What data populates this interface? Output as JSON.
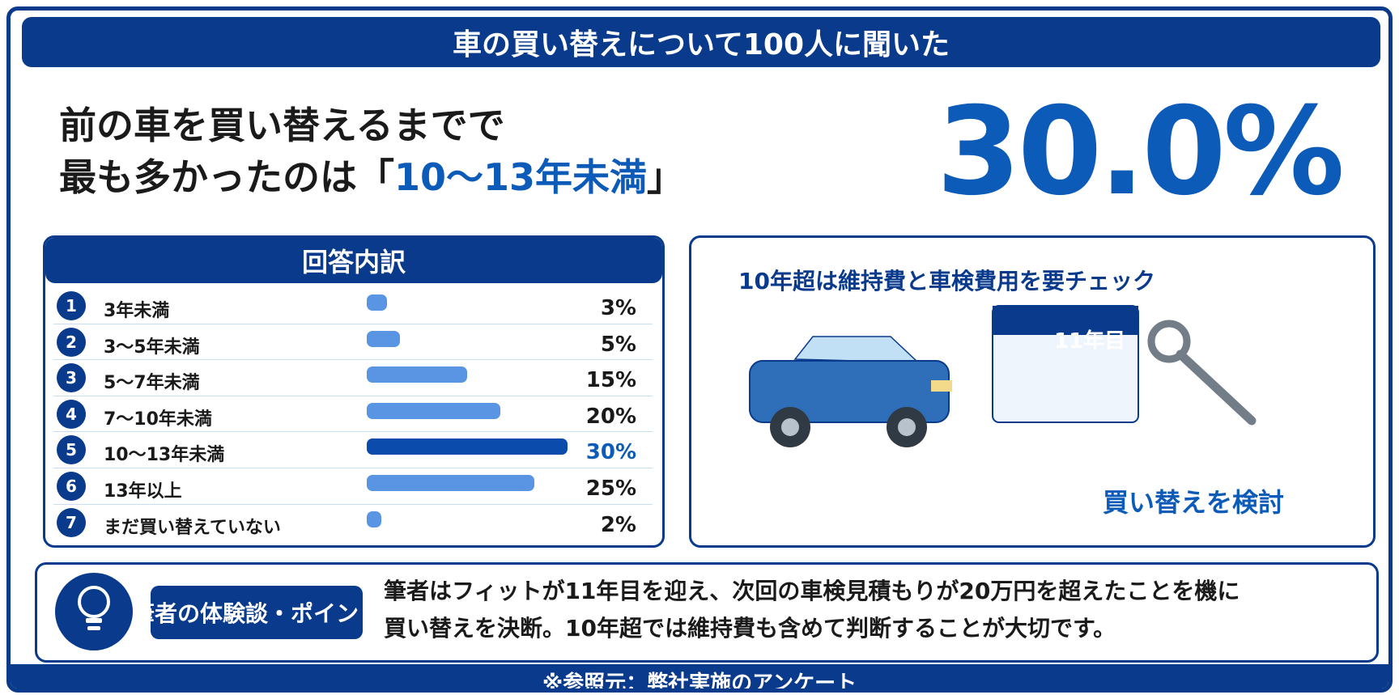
{
  "title": "車の買い替えについて100人に聞いた",
  "headline": {
    "line1": "前の車を買い替えるまでで",
    "line2_prefix": "最も多かったのは「",
    "line2_highlight": "10〜13年未満",
    "line2_suffix": "」"
  },
  "big_value": "30.0%",
  "breakdown_title": "回答内訳",
  "chart_data": {
    "type": "bar",
    "orientation": "horizontal",
    "categories": [
      "3年未満",
      "3〜5年未満",
      "5〜7年未満",
      "7〜10年未満",
      "10〜13年未満",
      "13年以上",
      "まだ買い替えていない"
    ],
    "values": [
      3,
      5,
      15,
      20,
      30,
      25,
      2
    ],
    "value_labels": [
      "3%",
      "5%",
      "15%",
      "20%",
      "30%",
      "25%",
      "2%"
    ],
    "index_labels": [
      "1",
      "2",
      "3",
      "4",
      "5",
      "6",
      "7"
    ],
    "highlight_index": 4,
    "colors": {
      "bar": "#5a95e3",
      "highlight": "#0a4bab"
    },
    "xlim": [
      0,
      30
    ]
  },
  "tip": {
    "title": "10年超は維持費と車検費用を要チェック",
    "calendar_label": "11年目",
    "caption": "買い替えを検討",
    "icons": [
      "car-icon",
      "calendar-icon",
      "wrench-icon"
    ]
  },
  "note": {
    "badge": "筆者の体験談・ポイント",
    "text_line1": "筆者はフィットが11年目を迎え、次回の車検見積もりが20万円を超えたことを機に",
    "text_line2": "買い替えを決断。10年超では維持費も含めて判断することが大切です。",
    "icon": "lightbulb-icon"
  },
  "footer": "※参照元：弊社実施のアンケート",
  "colors": {
    "primary": "#0a3a8c",
    "accent": "#0d5bb8"
  }
}
